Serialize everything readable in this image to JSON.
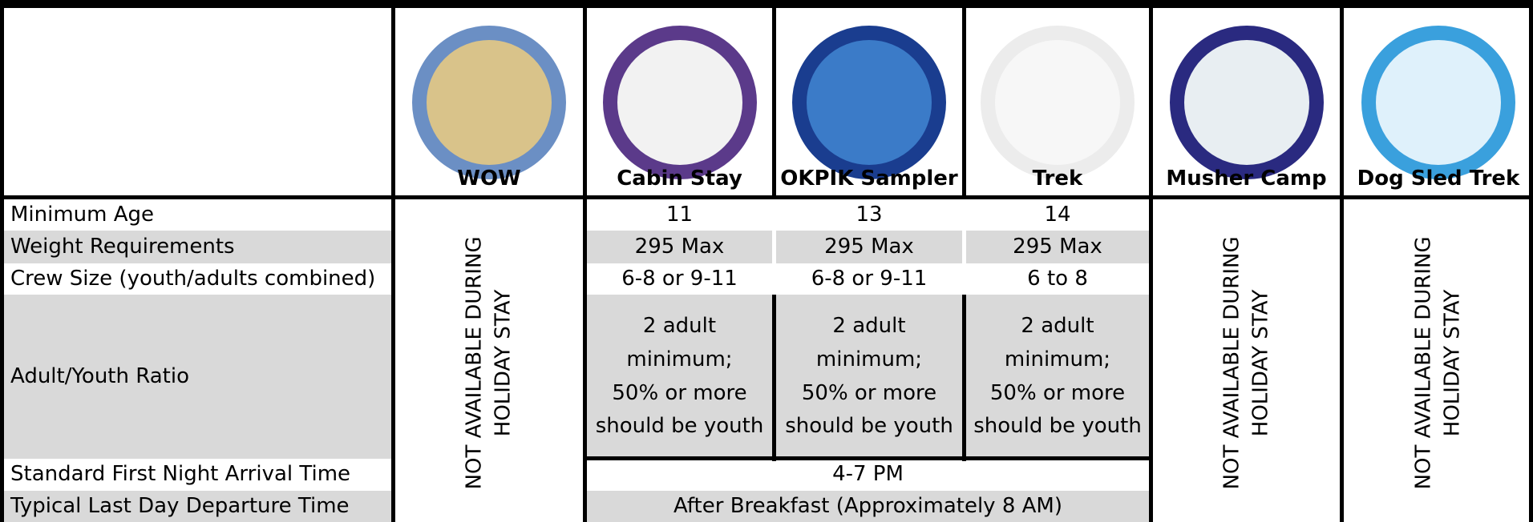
{
  "table": {
    "columns": [
      "WOW",
      "Cabin Stay",
      "OKPIK Sampler",
      "Trek",
      "Musher Camp",
      "Dog Sled Trek"
    ],
    "rows": [
      {
        "label": "Minimum Age",
        "values": [
          "11",
          "13",
          "14"
        ]
      },
      {
        "label": "Weight Requirements",
        "values": [
          "295 Max",
          "295 Max",
          "295 Max"
        ]
      },
      {
        "label": "Crew Size (youth/adults combined)",
        "values": [
          "6-8 or 9-11",
          "6-8 or 9-11",
          "6 to 8"
        ]
      },
      {
        "label": "Adult/Youth Ratio",
        "values": [
          [
            "2 adult",
            "minimum;",
            "50% or more",
            "should be youth"
          ],
          [
            "2 adult",
            "minimum;",
            "50% or more",
            "should be youth"
          ],
          [
            "2 adult",
            "minimum;",
            "50% or more",
            "should be youth"
          ]
        ]
      },
      {
        "label": "Standard First Night Arrival Time",
        "value": "4-7 PM"
      },
      {
        "label": "Typical Last Day Departure Time",
        "value": "After Breakfast (Approximately 8 AM)"
      }
    ],
    "unavailable": [
      [
        "NOT AVAILABLE DURING",
        "HOLIDAY STAY"
      ],
      [
        "NOT AVAILABLE DURING",
        "HOLIDAY STAY"
      ],
      [
        "NOT AVAILABLE DURING",
        "HOLIDAY STAY"
      ]
    ]
  }
}
